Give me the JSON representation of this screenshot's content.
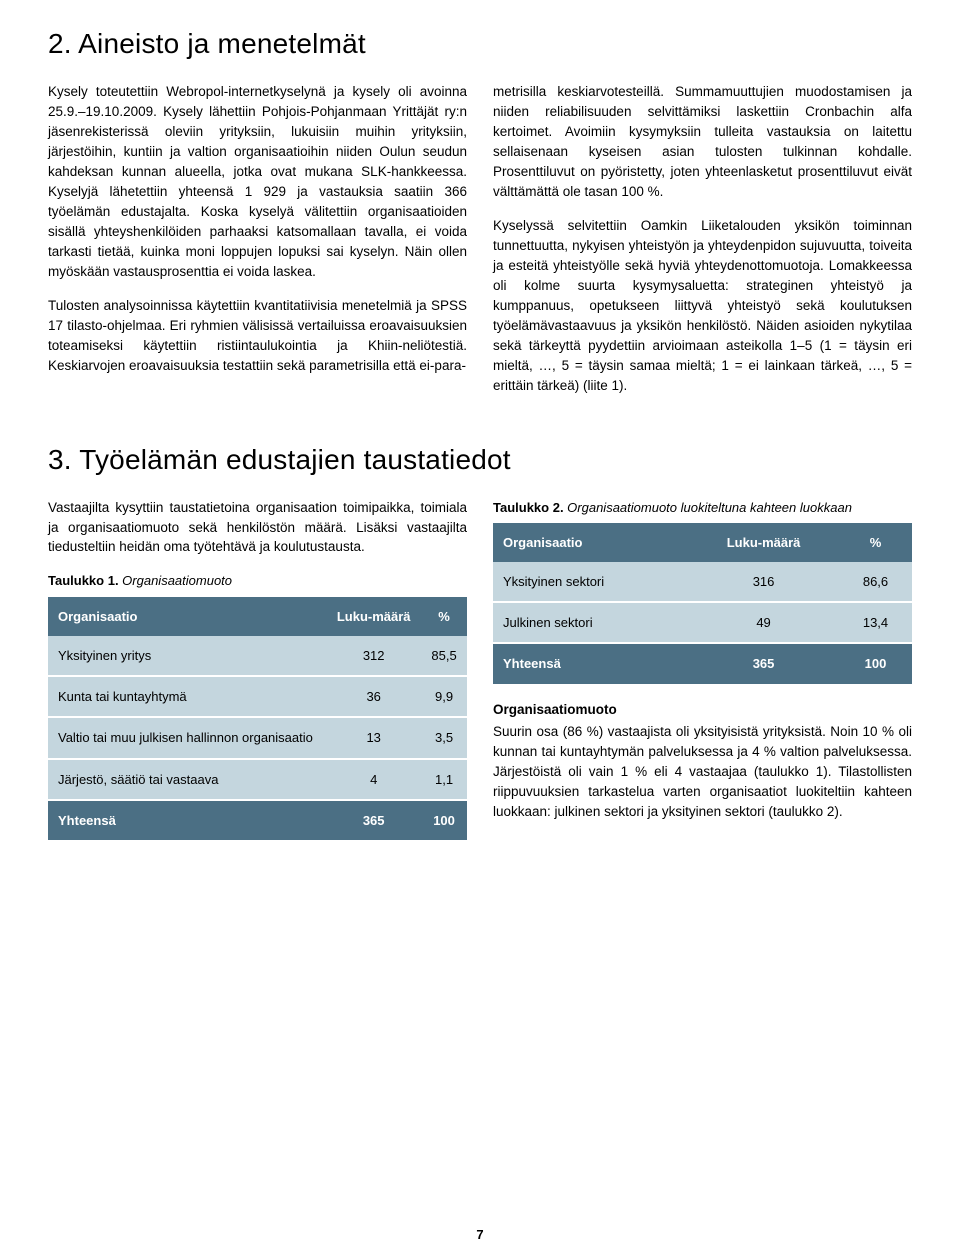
{
  "section2": {
    "heading": "2. Aineisto ja menetelmät",
    "left": {
      "p1": "Kysely toteutettiin Webropol-internetkyselynä ja kysely oli avoinna 25.9.–19.10.2009. Kysely lähettiin Pohjois-Pohjanmaan Yrittäjät ry:n jäsenrekisterissä oleviin yrityksiin, lukuisiin muihin yrityksiin, järjestöihin, kuntiin ja valtion organisaatioihin niiden Oulun seudun kahdeksan kunnan alueella, jotka ovat mukana SLK-hankkeessa. Kyselyjä lähetettiin yhteensä 1 929 ja vastauksia saatiin 366 työelämän edustajalta. Koska kyselyä välitettiin organisaatioiden sisällä yhteyshenkilöiden parhaaksi katsomallaan tavalla, ei voida tarkasti tietää, kuinka moni loppujen lopuksi sai kyselyn. Näin ollen myöskään vastausprosenttia ei voida laskea.",
      "p2": "Tulosten analysoinnissa käytettiin kvantitatiivisia menetelmiä ja SPSS 17 tilasto-ohjelmaa. Eri ryhmien välisissä vertailuissa eroavaisuuksien toteamiseksi käytettiin ristiintaulukointia ja Khiin-neliötestiä. Keskiarvojen eroavaisuuksia testattiin sekä parametrisilla että ei-para-"
    },
    "right": {
      "p1": "metrisilla keskiarvotesteillä. Summamuuttujien muodostamisen ja niiden reliabilisuuden selvittämiksi laskettiin Cronbachin alfa kertoimet. Avoimiin kysymyksiin tulleita vastauksia on laitettu sellaisenaan kyseisen asian tulosten tulkinnan kohdalle. Prosenttiluvut on pyöristetty, joten yhteenlasketut prosenttiluvut eivät välttämättä ole tasan 100 %.",
      "p2": "Kyselyssä selvitettiin Oamkin Liiketalouden yksikön toiminnan tunnettuutta, nykyisen yhteistyön ja yhteydenpidon sujuvuutta, toiveita ja esteitä yhteistyölle sekä hyviä yhteydenottomuotoja. Lomakkeessa oli kolme suurta kysymysaluetta: strateginen yhteistyö ja kumppanuus, opetukseen liittyvä yhteistyö sekä koulutuksen työelämävastaavuus ja yksikön henkilöstö. Näiden asioiden nykytilaa sekä tärkeyttä pyydettiin arvioimaan asteikolla 1–5 (1 = täysin eri mieltä, …, 5 = täysin samaa mieltä; 1 = ei lainkaan tärkeä, …, 5 = erittäin tärkeä) (liite 1)."
    }
  },
  "section3": {
    "heading": "3. Työelämän edustajien taustatiedot",
    "left": {
      "p1": "Vastaajilta kysyttiin taustatietoina organisaation toimipaikka, toimiala ja organisaatiomuoto sekä henkilöstön määrä. Lisäksi vastaajilta tiedusteltiin heidän oma työtehtävä ja koulutustausta."
    },
    "table1": {
      "caption_bold": "Taulukko 1.",
      "caption_ital": " Organisaatiomuoto",
      "columns": [
        "Organisaatio",
        "Luku-määrä",
        "%"
      ],
      "rows": [
        {
          "label": "Yksityinen yritys",
          "count": "312",
          "pct": "85,5"
        },
        {
          "label": "Kunta tai kuntayhtymä",
          "count": "36",
          "pct": "9,9"
        },
        {
          "label": "Valtio tai muu julkisen hallinnon organisaatio",
          "count": "13",
          "pct": "3,5"
        },
        {
          "label": "Järjestö, säätiö tai vastaava",
          "count": "4",
          "pct": "1,1"
        }
      ],
      "total": {
        "label": "Yhteensä",
        "count": "365",
        "pct": "100"
      }
    },
    "table2": {
      "caption_bold": "Taulukko 2.",
      "caption_ital": " Organisaatiomuoto luokiteltuna kahteen luokkaan",
      "columns": [
        "Organisaatio",
        "Luku-määrä",
        "%"
      ],
      "rows": [
        {
          "label": "Yksityinen sektori",
          "count": "316",
          "pct": "86,6"
        },
        {
          "label": "Julkinen sektori",
          "count": "49",
          "pct": "13,4"
        }
      ],
      "total": {
        "label": "Yhteensä",
        "count": "365",
        "pct": "100"
      }
    },
    "right": {
      "subheading": "Organisaatiomuoto",
      "p1": "Suurin osa (86 %) vastaajista oli yksityisistä yrityksistä. Noin 10 % oli kunnan tai kuntayhtymän palveluksessa ja 4 % valtion palveluksessa. Järjestöistä oli vain 1 % eli 4 vastaajaa (taulukko 1). Tilastollisten riippuvuuksien tarkastelua varten organisaatiot luokiteltiin kahteen luokkaan: julkinen sektori ja yksityinen sektori (taulukko 2)."
    }
  },
  "page_number": "7",
  "colors": {
    "table_header_bg": "#4b6f84",
    "table_row_bg": "#c4d6de",
    "text": "#000000"
  }
}
